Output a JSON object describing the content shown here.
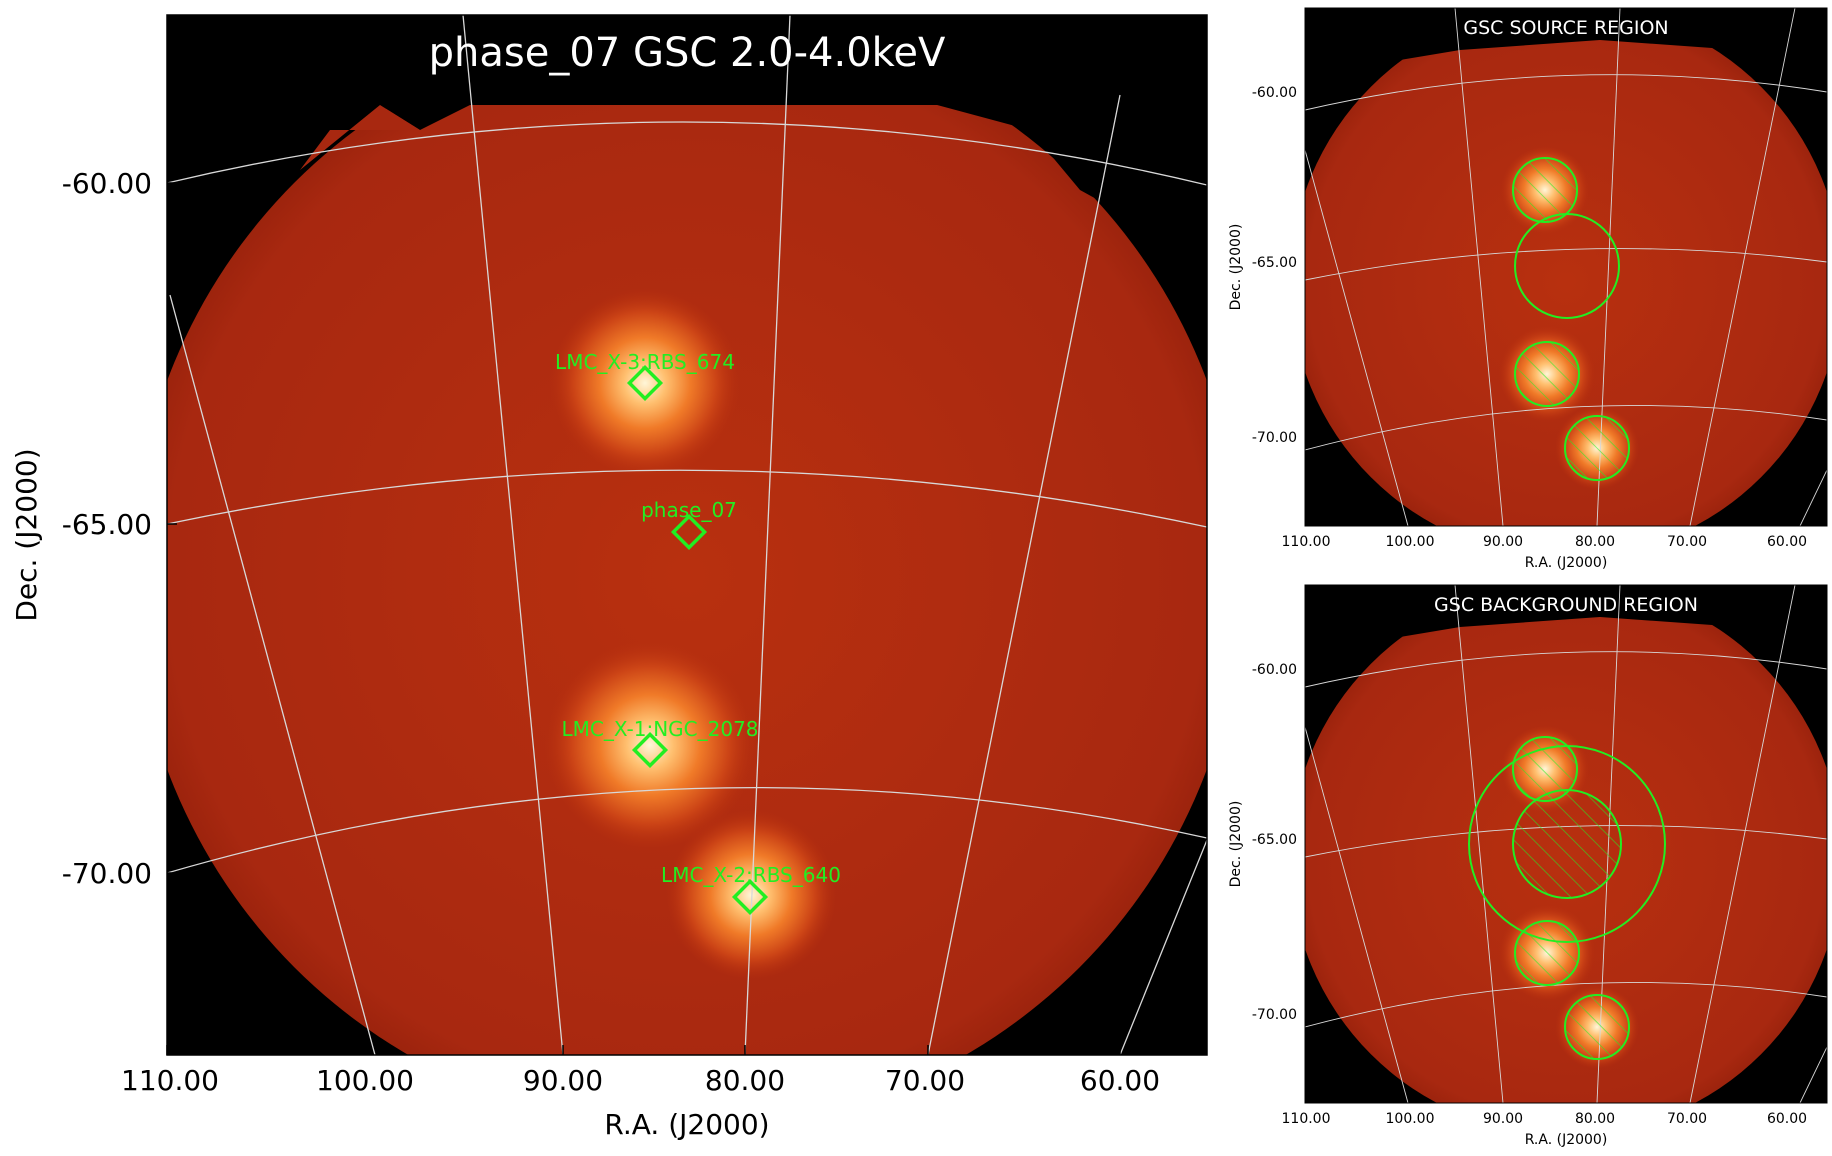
{
  "main": {
    "title": "phase_07 GSC 2.0-4.0keV",
    "xlabel": "R.A. (J2000)",
    "ylabel": "Dec. (J2000)",
    "xticks": [
      "110.00",
      "100.00",
      "90.00",
      "80.00",
      "70.00",
      "60.00"
    ],
    "yticks": [
      "-60.00",
      "-65.00",
      "-70.00"
    ],
    "sources": [
      {
        "label": "LMC_X-3:RBS_674",
        "ra": 85.2,
        "dec": -62.8
      },
      {
        "label": "phase_07",
        "ra": 82.8,
        "dec": -65.1
      },
      {
        "label": "LMC_X-1:NGC_2078",
        "ra": 84.9,
        "dec": -68.2
      },
      {
        "label": "LMC_X-2:RBS_640",
        "ra": 79.7,
        "dec": -70.3
      }
    ]
  },
  "source_panel": {
    "title": "GSC SOURCE REGION",
    "xlabel": "R.A. (J2000)",
    "ylabel": "Dec. (J2000)",
    "xticks": [
      "110.00",
      "100.00",
      "90.00",
      "80.00",
      "70.00",
      "60.00"
    ],
    "yticks": [
      "-60.00",
      "-65.00",
      "-70.00"
    ]
  },
  "background_panel": {
    "title": "GSC BACKGROUND REGION",
    "xlabel": "R.A. (J2000)",
    "ylabel": "Dec. (J2000)",
    "xticks": [
      "110.00",
      "100.00",
      "90.00",
      "80.00",
      "70.00",
      "60.00"
    ],
    "yticks": [
      "-60.00",
      "-65.00",
      "-70.00"
    ]
  },
  "colors": {
    "sky": "#b52a10",
    "source_core": "#fff2c0",
    "marker": "#22ee22",
    "grid": "#d8d8d8"
  }
}
